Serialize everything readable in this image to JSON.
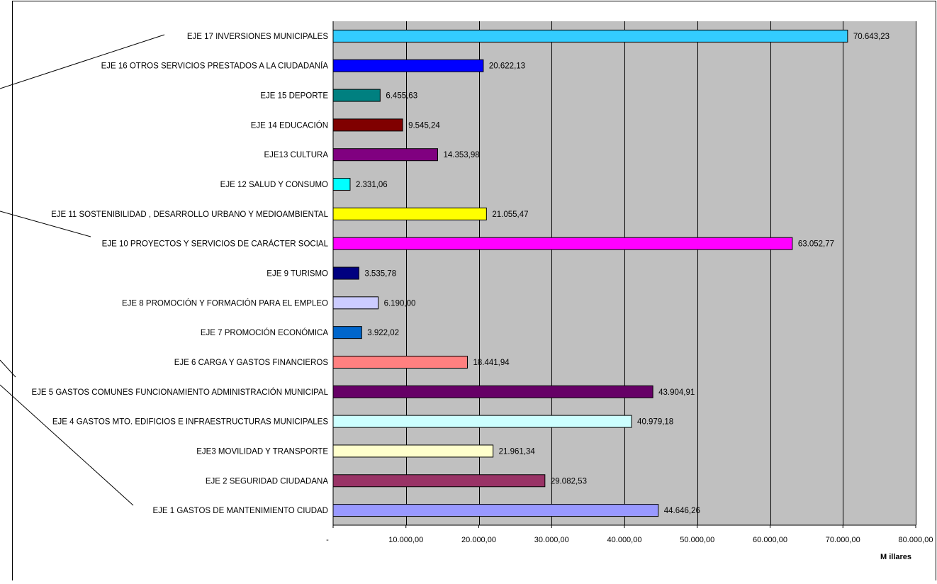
{
  "chart_data": {
    "type": "bar",
    "orientation": "horizontal",
    "categories": [
      "EJE 17 INVERSIONES MUNICIPALES",
      "EJE 16 OTROS SERVICIOS PRESTADOS A LA CIUDADANÍA",
      "EJE 15 DEPORTE",
      "EJE 14 EDUCACIÓN",
      "EJE13 CULTURA",
      "EJE 12 SALUD Y CONSUMO",
      "EJE 11 SOSTENIBILIDAD , DESARROLLO URBANO Y MEDIOAMBIENTAL",
      "EJE 10 PROYECTOS Y SERVICIOS DE CARÁCTER SOCIAL",
      "EJE 9 TURISMO",
      "EJE 8  PROMOCIÓN Y FORMACIÓN PARA EL EMPLEO",
      "EJE 7 PROMOCIÓN ECONÓMICA",
      "EJE 6 CARGA Y GASTOS FINANCIEROS",
      "EJE 5 GASTOS COMUNES FUNCIONAMIENTO ADMINISTRACIÓN MUNICIPAL",
      "EJE 4 GASTOS MTO. EDIFICIOS E INFRAESTRUCTURAS MUNICIPALES",
      "EJE3 MOVILIDAD Y TRANSPORTE",
      "EJE 2 SEGURIDAD CIUDADANA",
      "EJE 1 GASTOS DE MANTENIMIENTO CIUDAD"
    ],
    "values": [
      70643.23,
      20622.13,
      6455.63,
      9545.24,
      14353.98,
      2331.06,
      21055.47,
      63052.77,
      3535.78,
      6190.0,
      3922.02,
      18441.94,
      43904.91,
      40979.18,
      21961.34,
      29082.53,
      44646.26
    ],
    "value_labels": [
      "70.643,23",
      "20.622,13",
      "6.455,63",
      "9.545,24",
      "14.353,98",
      "2.331,06",
      "21.055,47",
      "63.052,77",
      "3.535,78",
      "6.190,00",
      "3.922,02",
      "18.441,94",
      "43.904,91",
      "40.979,18",
      "21.961,34",
      "29.082,53",
      "44.646,26"
    ],
    "colors": [
      "#33ccff",
      "#0000ff",
      "#008080",
      "#800000",
      "#800080",
      "#00ffff",
      "#ffff00",
      "#ff00ff",
      "#000080",
      "#ccccff",
      "#0066cc",
      "#ff8080",
      "#660066",
      "#ccffff",
      "#ffffcc",
      "#993366",
      "#9999ff"
    ],
    "xticks": [
      0,
      10000,
      20000,
      30000,
      40000,
      50000,
      60000,
      70000,
      80000
    ],
    "xtick_labels": [
      "-",
      "10.000,00",
      "20.000,00",
      "30.000,00",
      "40.000,00",
      "50.000,00",
      "60.000,00",
      "70.000,00",
      "80.000,00"
    ],
    "xlim": [
      0,
      80000
    ],
    "xlabel": "M illares",
    "title": "",
    "plot_background": "#c0c0c0",
    "grid": "vertical"
  }
}
